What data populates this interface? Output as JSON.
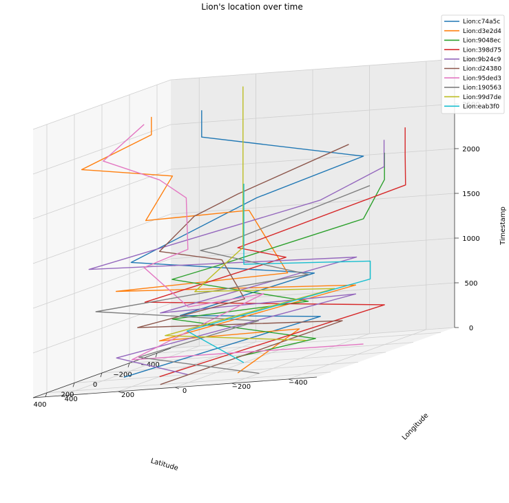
{
  "chart_data": {
    "type": "line",
    "projection": "3d",
    "title": "Lion's location over time",
    "xlabel": "Latitude",
    "ylabel": "Longitude",
    "zlabel": "Timestamp",
    "xlim": [
      -500,
      500
    ],
    "ylim": [
      -500,
      500
    ],
    "zlim": [
      0,
      3000
    ],
    "xticks": [
      -400,
      -200,
      0,
      200,
      400
    ],
    "yticks": [
      -400,
      -200,
      0,
      200,
      400
    ],
    "zticks": [
      0,
      500,
      1000,
      1500,
      2000,
      2500,
      3000
    ],
    "grid": true,
    "legend_position": "top-right",
    "series": [
      {
        "name": "Lion:c74a5c",
        "color": "#1f77b4",
        "points": [
          [
            150,
            350,
            0
          ],
          [
            -350,
            -100,
            300
          ],
          [
            50,
            200,
            600
          ],
          [
            -100,
            -200,
            900
          ],
          [
            200,
            300,
            1300
          ],
          [
            -300,
            100,
            1700
          ],
          [
            -250,
            -300,
            2100
          ],
          [
            100,
            100,
            2600
          ],
          [
            100,
            100,
            2900
          ]
        ]
      },
      {
        "name": "Lion:d3e2d4",
        "color": "#ff7f0e",
        "points": [
          [
            250,
            -100,
            0
          ],
          [
            -300,
            -50,
            200
          ],
          [
            200,
            200,
            400
          ],
          [
            -400,
            -200,
            600
          ],
          [
            0,
            450,
            900
          ],
          [
            300,
            -300,
            1100
          ],
          [
            -450,
            200,
            1500
          ],
          [
            300,
            200,
            1800
          ],
          [
            -100,
            300,
            2100
          ],
          [
            250,
            450,
            2400
          ],
          [
            -50,
            350,
            2600
          ],
          [
            -50,
            350,
            2800
          ]
        ]
      },
      {
        "name": "Lion:9048ec",
        "color": "#2ca02c",
        "points": [
          [
            -150,
            100,
            0
          ],
          [
            200,
            -350,
            300
          ],
          [
            -100,
            300,
            500
          ],
          [
            150,
            -300,
            700
          ],
          [
            -200,
            350,
            900
          ],
          [
            0,
            100,
            1100
          ],
          [
            -250,
            -300,
            1400
          ],
          [
            -300,
            -350,
            1800
          ],
          [
            -300,
            -350,
            2100
          ]
        ]
      },
      {
        "name": "Lion:398d75",
        "color": "#d62728",
        "points": [
          [
            200,
            200,
            0
          ],
          [
            -300,
            -350,
            400
          ],
          [
            100,
            300,
            800
          ],
          [
            -100,
            -100,
            1100
          ],
          [
            250,
            -100,
            1400
          ],
          [
            -350,
            -400,
            1700
          ],
          [
            -450,
            -350,
            2000
          ],
          [
            -450,
            -350,
            2300
          ]
        ]
      },
      {
        "name": "Lion:9b24c9",
        "color": "#9467bd",
        "points": [
          [
            200,
            100,
            0
          ],
          [
            100,
            400,
            200
          ],
          [
            -400,
            -200,
            500
          ],
          [
            400,
            100,
            800
          ],
          [
            -200,
            -300,
            1000
          ],
          [
            300,
            400,
            1300
          ],
          [
            -350,
            -100,
            1600
          ],
          [
            -400,
            -300,
            1900
          ],
          [
            -400,
            -300,
            2200
          ]
        ]
      },
      {
        "name": "Lion:d24380",
        "color": "#8c564b",
        "points": [
          [
            400,
            100,
            0
          ],
          [
            -200,
            -250,
            300
          ],
          [
            50,
            350,
            500
          ],
          [
            200,
            -100,
            800
          ],
          [
            -150,
            150,
            1100
          ],
          [
            200,
            200,
            1400
          ],
          [
            50,
            150,
            1700
          ],
          [
            250,
            -100,
            2000
          ],
          [
            -350,
            -200,
            2200
          ]
        ]
      },
      {
        "name": "Lion:95ded3",
        "color": "#e377c2",
        "points": [
          [
            -250,
            -300,
            0
          ],
          [
            400,
            200,
            300
          ],
          [
            -350,
            100,
            600
          ],
          [
            300,
            50,
            800
          ],
          [
            -100,
            400,
            1100
          ],
          [
            200,
            100,
            1400
          ],
          [
            -200,
            300,
            1800
          ],
          [
            200,
            200,
            2200
          ],
          [
            300,
            350,
            2500
          ],
          [
            -100,
            400,
            2700
          ]
        ]
      },
      {
        "name": "Lion:190563",
        "color": "#7f7f7f",
        "points": [
          [
            300,
            -200,
            0
          ],
          [
            350,
            200,
            300
          ],
          [
            100,
            -100,
            500
          ],
          [
            250,
            400,
            800
          ],
          [
            150,
            -300,
            1000
          ],
          [
            -200,
            250,
            1200
          ],
          [
            400,
            -100,
            1500
          ],
          [
            -400,
            -250,
            1700
          ]
        ]
      },
      {
        "name": "Lion:99d7de",
        "color": "#bcbd22",
        "points": [
          [
            -450,
            0,
            0
          ],
          [
            -150,
            350,
            300
          ],
          [
            -350,
            -150,
            600
          ],
          [
            150,
            100,
            900
          ],
          [
            -200,
            100,
            1200
          ],
          [
            -200,
            100,
            2000
          ],
          [
            -200,
            100,
            3000
          ]
        ]
      },
      {
        "name": "Lion:eab3f0",
        "color": "#17becf",
        "points": [
          [
            0,
            0,
            0
          ],
          [
            0,
            200,
            400
          ],
          [
            -300,
            -300,
            700
          ],
          [
            -300,
            -300,
            900
          ],
          [
            0,
            0,
            1100
          ],
          [
            0,
            0,
            2000
          ]
        ]
      }
    ]
  }
}
